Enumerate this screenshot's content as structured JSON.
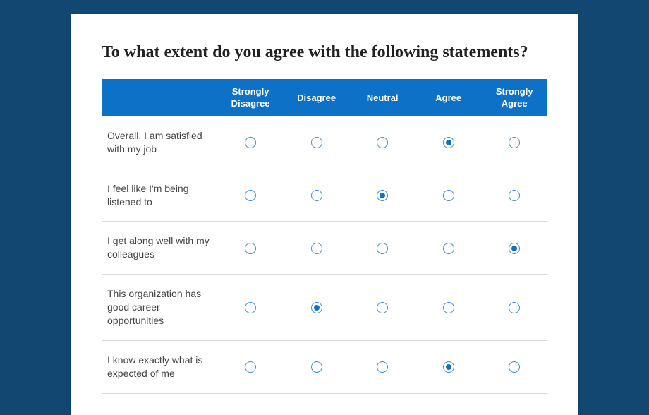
{
  "colors": {
    "page_bg": "#124772",
    "card_bg": "#ffffff",
    "header_bg": "#0d72c7",
    "header_text": "#ffffff",
    "row_text": "#444444",
    "title_text": "#212121",
    "radio_border": "#3d8dd6",
    "radio_fill": "#0d72c7",
    "row_divider": "#d9d9d9"
  },
  "typography": {
    "title_font": "serif",
    "title_size_pt": 18,
    "title_weight": 700,
    "body_size_pt": 10.5,
    "header_size_pt": 10
  },
  "question": {
    "title": "To what extent do you agree with the following statements?",
    "options": [
      "Strongly Disagree",
      "Disagree",
      "Neutral",
      "Agree",
      "Strongly Agree"
    ],
    "rows": [
      {
        "label": "Overall, I am satisfied with my job",
        "selected": 3
      },
      {
        "label": "I feel like I'm being listened to",
        "selected": 2
      },
      {
        "label": "I get along well with my colleagues",
        "selected": 4
      },
      {
        "label": "This organization has good career opportunities",
        "selected": 1
      },
      {
        "label": "I know exactly what is expected of me",
        "selected": 3
      }
    ]
  }
}
